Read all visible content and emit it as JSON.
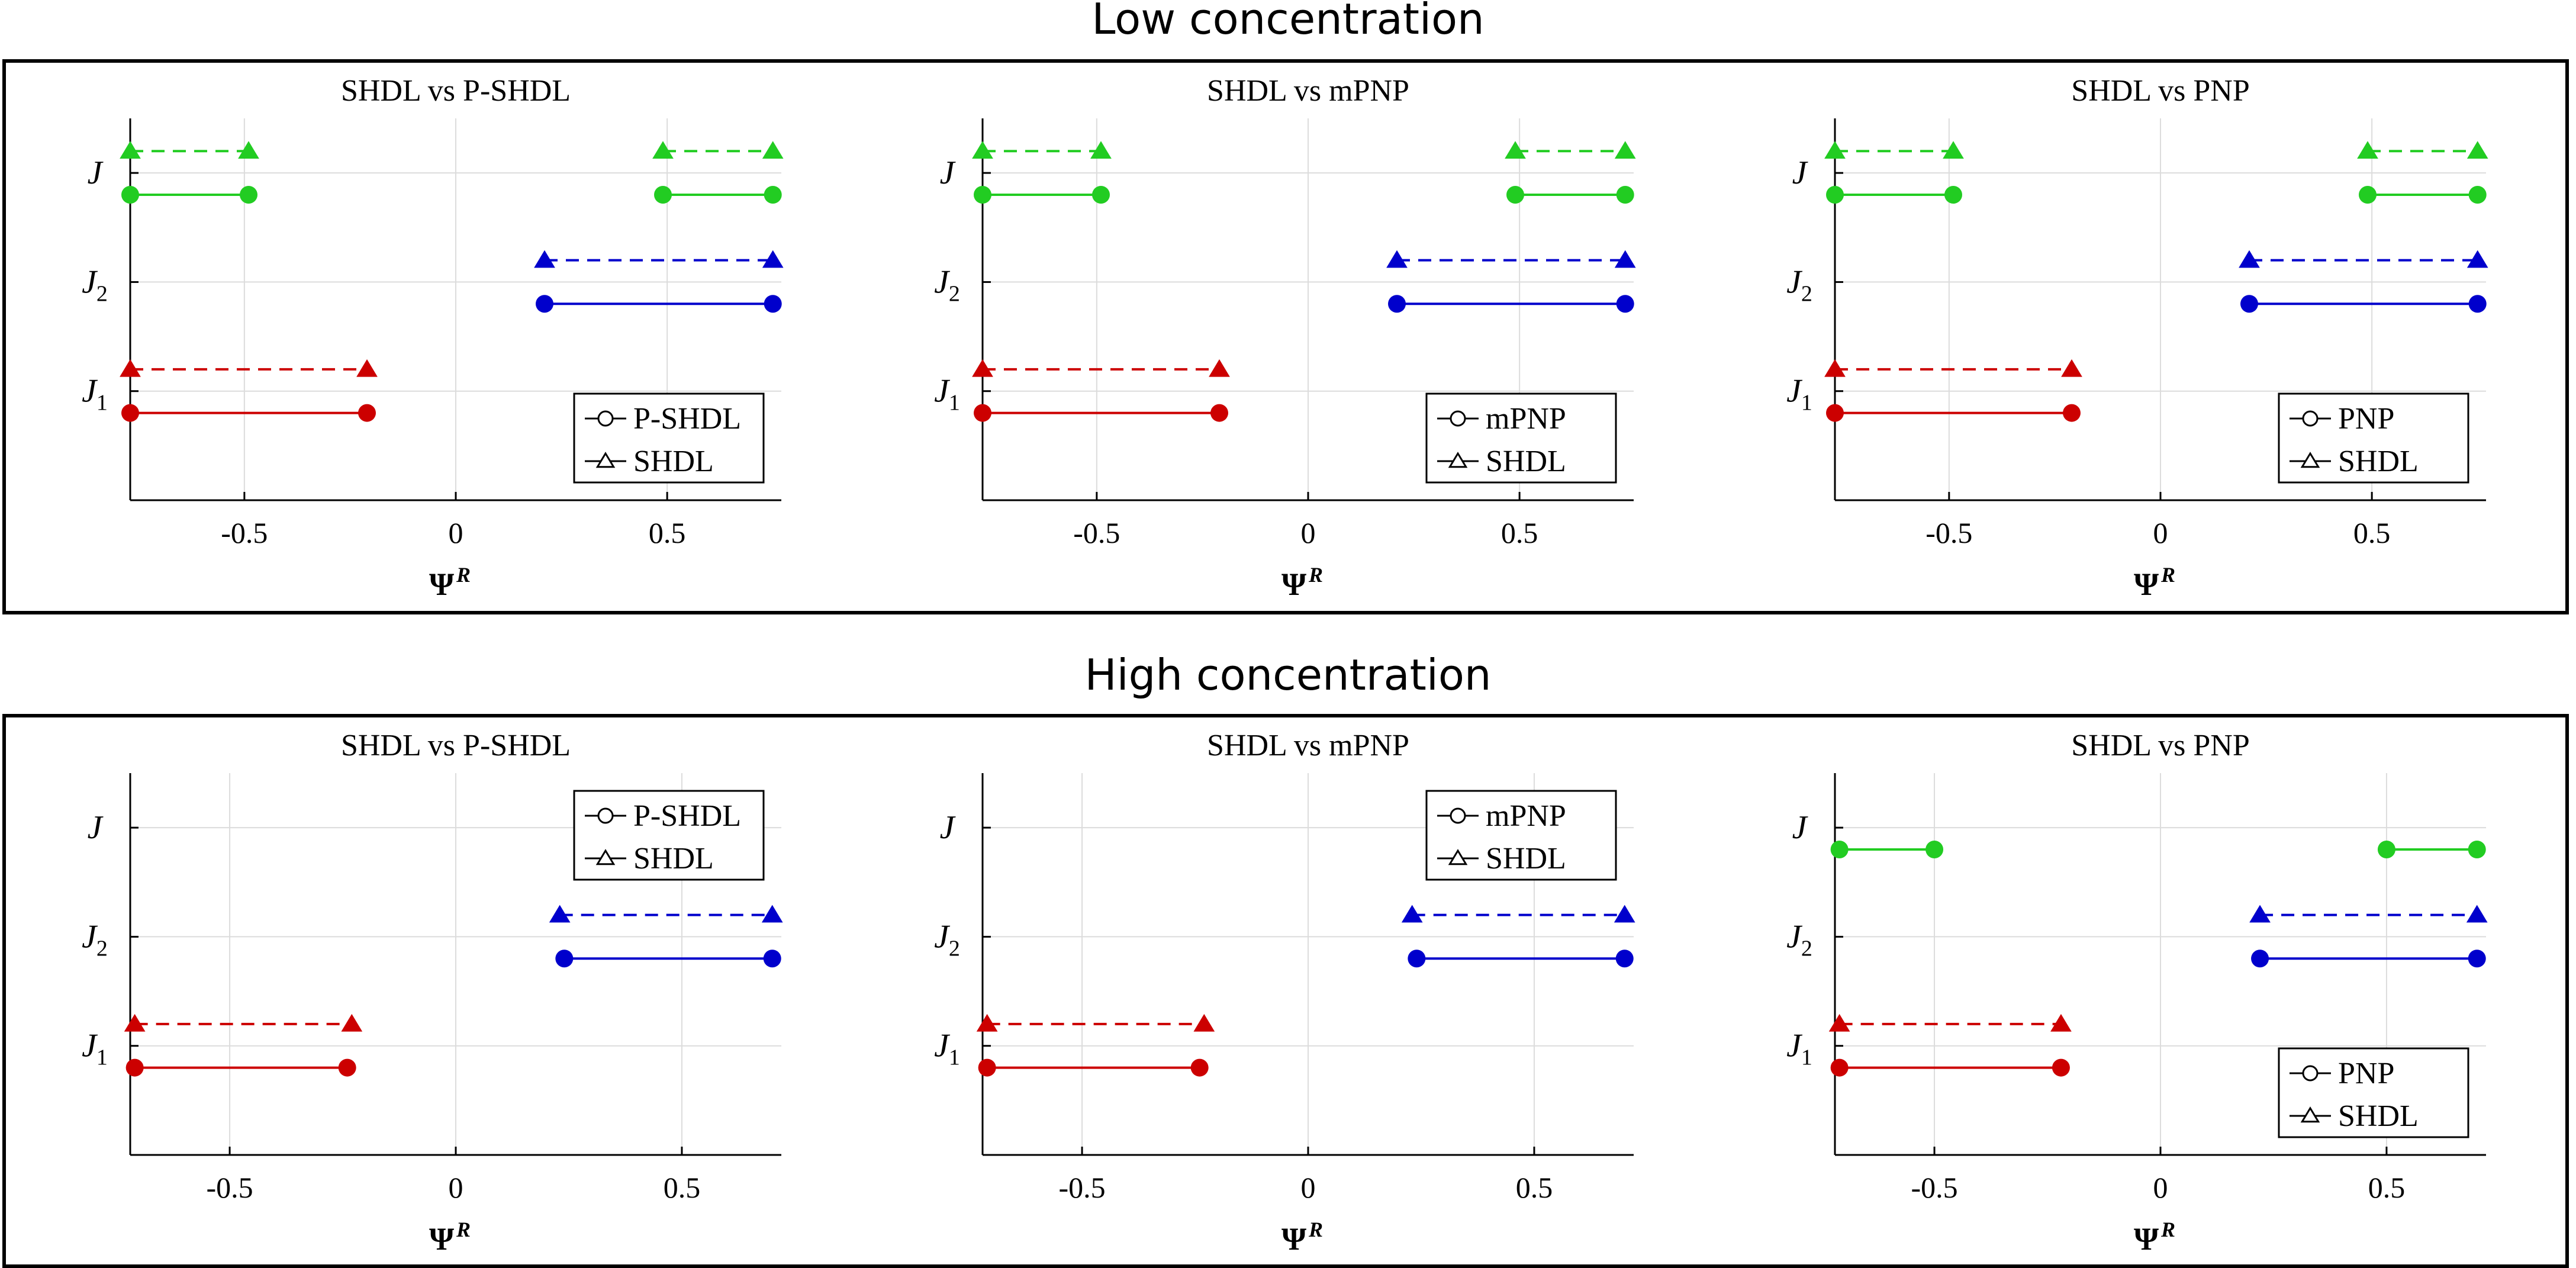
{
  "sections": [
    {
      "title": "Low concentration"
    },
    {
      "title": "High concentration"
    }
  ],
  "colors": {
    "J": "#22cc22",
    "J2": "#0000cc",
    "J1": "#cc0000",
    "axis": "#000000",
    "grid": "#dcdcdc"
  },
  "chart_data": [
    {
      "type": "line",
      "section": 0,
      "title": "SHDL vs P-SHDL",
      "xlabel": "Ψ",
      "xlabel_sup": "R",
      "xlim": [
        -0.77,
        0.77
      ],
      "ylim": [
        0,
        3.5
      ],
      "xticks": [
        -0.5,
        0,
        0.5
      ],
      "xtick_labels": [
        "-0.5",
        "0",
        "0.5"
      ],
      "yticks": [
        {
          "value": 1,
          "label": "J",
          "sub": "1"
        },
        {
          "value": 2,
          "label": "J",
          "sub": "2"
        },
        {
          "value": 3,
          "label": "J",
          "sub": ""
        }
      ],
      "legend": {
        "position": "bottom-right",
        "entries": [
          "P-SHDL",
          "SHDL"
        ]
      },
      "series": [
        {
          "name": "P-SHDL",
          "flux": "J",
          "marker": "circle",
          "dash": false,
          "y": 2.8,
          "segments": [
            [
              -0.77,
              -0.49
            ],
            [
              0.49,
              0.75
            ]
          ]
        },
        {
          "name": "SHDL",
          "flux": "J",
          "marker": "triangle",
          "dash": true,
          "y": 3.2,
          "segments": [
            [
              -0.77,
              -0.49
            ],
            [
              0.49,
              0.75
            ]
          ]
        },
        {
          "name": "P-SHDL",
          "flux": "J2",
          "marker": "circle",
          "dash": false,
          "y": 1.8,
          "segments": [
            [
              0.21,
              0.75
            ]
          ]
        },
        {
          "name": "SHDL",
          "flux": "J2",
          "marker": "triangle",
          "dash": true,
          "y": 2.2,
          "segments": [
            [
              0.21,
              0.75
            ]
          ]
        },
        {
          "name": "P-SHDL",
          "flux": "J1",
          "marker": "circle",
          "dash": false,
          "y": 0.8,
          "segments": [
            [
              -0.77,
              -0.21
            ]
          ]
        },
        {
          "name": "SHDL",
          "flux": "J1",
          "marker": "triangle",
          "dash": true,
          "y": 1.2,
          "segments": [
            [
              -0.77,
              -0.21
            ]
          ]
        }
      ]
    },
    {
      "type": "line",
      "section": 0,
      "title": "SHDL vs mPNP",
      "xlabel": "Ψ",
      "xlabel_sup": "R",
      "xlim": [
        -0.77,
        0.77
      ],
      "ylim": [
        0,
        3.5
      ],
      "xticks": [
        -0.5,
        0,
        0.5
      ],
      "xtick_labels": [
        "-0.5",
        "0",
        "0.5"
      ],
      "yticks": [
        {
          "value": 1,
          "label": "J",
          "sub": "1"
        },
        {
          "value": 2,
          "label": "J",
          "sub": "2"
        },
        {
          "value": 3,
          "label": "J",
          "sub": ""
        }
      ],
      "legend": {
        "position": "bottom-right",
        "entries": [
          "mPNP",
          "SHDL"
        ]
      },
      "series": [
        {
          "name": "mPNP",
          "flux": "J",
          "marker": "circle",
          "dash": false,
          "y": 2.8,
          "segments": [
            [
              -0.77,
              -0.49
            ],
            [
              0.49,
              0.75
            ]
          ]
        },
        {
          "name": "SHDL",
          "flux": "J",
          "marker": "triangle",
          "dash": true,
          "y": 3.2,
          "segments": [
            [
              -0.77,
              -0.49
            ],
            [
              0.49,
              0.75
            ]
          ]
        },
        {
          "name": "mPNP",
          "flux": "J2",
          "marker": "circle",
          "dash": false,
          "y": 1.8,
          "segments": [
            [
              0.21,
              0.75
            ]
          ]
        },
        {
          "name": "SHDL",
          "flux": "J2",
          "marker": "triangle",
          "dash": true,
          "y": 2.2,
          "segments": [
            [
              0.21,
              0.75
            ]
          ]
        },
        {
          "name": "mPNP",
          "flux": "J1",
          "marker": "circle",
          "dash": false,
          "y": 0.8,
          "segments": [
            [
              -0.77,
              -0.21
            ]
          ]
        },
        {
          "name": "SHDL",
          "flux": "J1",
          "marker": "triangle",
          "dash": true,
          "y": 1.2,
          "segments": [
            [
              -0.77,
              -0.21
            ]
          ]
        }
      ]
    },
    {
      "type": "line",
      "section": 0,
      "title": "SHDL vs PNP",
      "xlabel": "Ψ",
      "xlabel_sup": "R",
      "xlim": [
        -0.77,
        0.77
      ],
      "ylim": [
        0,
        3.5
      ],
      "xticks": [
        -0.5,
        0,
        0.5
      ],
      "xtick_labels": [
        "-0.5",
        "0",
        "0.5"
      ],
      "yticks": [
        {
          "value": 1,
          "label": "J",
          "sub": "1"
        },
        {
          "value": 2,
          "label": "J",
          "sub": "2"
        },
        {
          "value": 3,
          "label": "J",
          "sub": ""
        }
      ],
      "legend": {
        "position": "bottom-right",
        "entries": [
          "PNP",
          "SHDL"
        ]
      },
      "series": [
        {
          "name": "PNP",
          "flux": "J",
          "marker": "circle",
          "dash": false,
          "y": 2.8,
          "segments": [
            [
              -0.77,
              -0.49
            ],
            [
              0.49,
              0.75
            ]
          ]
        },
        {
          "name": "SHDL",
          "flux": "J",
          "marker": "triangle",
          "dash": true,
          "y": 3.2,
          "segments": [
            [
              -0.77,
              -0.49
            ],
            [
              0.49,
              0.75
            ]
          ]
        },
        {
          "name": "PNP",
          "flux": "J2",
          "marker": "circle",
          "dash": false,
          "y": 1.8,
          "segments": [
            [
              0.21,
              0.75
            ]
          ]
        },
        {
          "name": "SHDL",
          "flux": "J2",
          "marker": "triangle",
          "dash": true,
          "y": 2.2,
          "segments": [
            [
              0.21,
              0.75
            ]
          ]
        },
        {
          "name": "PNP",
          "flux": "J1",
          "marker": "circle",
          "dash": false,
          "y": 0.8,
          "segments": [
            [
              -0.77,
              -0.21
            ]
          ]
        },
        {
          "name": "SHDL",
          "flux": "J1",
          "marker": "triangle",
          "dash": true,
          "y": 1.2,
          "segments": [
            [
              -0.77,
              -0.21
            ]
          ]
        }
      ]
    },
    {
      "type": "line",
      "section": 1,
      "title": "SHDL vs P-SHDL",
      "xlabel": "Ψ",
      "xlabel_sup": "R",
      "xlim": [
        -0.72,
        0.72
      ],
      "ylim": [
        0,
        3.5
      ],
      "xticks": [
        -0.5,
        0,
        0.5
      ],
      "xtick_labels": [
        "-0.5",
        "0",
        "0.5"
      ],
      "yticks": [
        {
          "value": 1,
          "label": "J",
          "sub": "1"
        },
        {
          "value": 2,
          "label": "J",
          "sub": "2"
        },
        {
          "value": 3,
          "label": "J",
          "sub": ""
        }
      ],
      "legend": {
        "position": "top-right",
        "entries": [
          "P-SHDL",
          "SHDL"
        ]
      },
      "series": [
        {
          "name": "P-SHDL",
          "flux": "J2",
          "marker": "circle",
          "dash": false,
          "y": 1.8,
          "segments": [
            [
              0.24,
              0.7
            ]
          ]
        },
        {
          "name": "SHDL",
          "flux": "J2",
          "marker": "triangle",
          "dash": true,
          "y": 2.2,
          "segments": [
            [
              0.23,
              0.7
            ]
          ]
        },
        {
          "name": "P-SHDL",
          "flux": "J1",
          "marker": "circle",
          "dash": false,
          "y": 0.8,
          "segments": [
            [
              -0.71,
              -0.24
            ]
          ]
        },
        {
          "name": "SHDL",
          "flux": "J1",
          "marker": "triangle",
          "dash": true,
          "y": 1.2,
          "segments": [
            [
              -0.71,
              -0.23
            ]
          ]
        }
      ]
    },
    {
      "type": "line",
      "section": 1,
      "title": "SHDL vs mPNP",
      "xlabel": "Ψ",
      "xlabel_sup": "R",
      "xlim": [
        -0.72,
        0.72
      ],
      "ylim": [
        0,
        3.5
      ],
      "xticks": [
        -0.5,
        0,
        0.5
      ],
      "xtick_labels": [
        "-0.5",
        "0",
        "0.5"
      ],
      "yticks": [
        {
          "value": 1,
          "label": "J",
          "sub": "1"
        },
        {
          "value": 2,
          "label": "J",
          "sub": "2"
        },
        {
          "value": 3,
          "label": "J",
          "sub": ""
        }
      ],
      "legend": {
        "position": "top-right",
        "entries": [
          "mPNP",
          "SHDL"
        ]
      },
      "series": [
        {
          "name": "mPNP",
          "flux": "J2",
          "marker": "circle",
          "dash": false,
          "y": 1.8,
          "segments": [
            [
              0.24,
              0.7
            ]
          ]
        },
        {
          "name": "SHDL",
          "flux": "J2",
          "marker": "triangle",
          "dash": true,
          "y": 2.2,
          "segments": [
            [
              0.23,
              0.7
            ]
          ]
        },
        {
          "name": "mPNP",
          "flux": "J1",
          "marker": "circle",
          "dash": false,
          "y": 0.8,
          "segments": [
            [
              -0.71,
              -0.24
            ]
          ]
        },
        {
          "name": "SHDL",
          "flux": "J1",
          "marker": "triangle",
          "dash": true,
          "y": 1.2,
          "segments": [
            [
              -0.71,
              -0.23
            ]
          ]
        }
      ]
    },
    {
      "type": "line",
      "section": 1,
      "title": "SHDL vs PNP",
      "xlabel": "Ψ",
      "xlabel_sup": "R",
      "xlim": [
        -0.72,
        0.72
      ],
      "ylim": [
        0,
        3.5
      ],
      "xticks": [
        -0.5,
        0,
        0.5
      ],
      "xtick_labels": [
        "-0.5",
        "0",
        "0.5"
      ],
      "yticks": [
        {
          "value": 1,
          "label": "J",
          "sub": "1"
        },
        {
          "value": 2,
          "label": "J",
          "sub": "2"
        },
        {
          "value": 3,
          "label": "J",
          "sub": ""
        }
      ],
      "legend": {
        "position": "bottom-right",
        "entries": [
          "PNP",
          "SHDL"
        ]
      },
      "series": [
        {
          "name": "PNP",
          "flux": "J",
          "marker": "circle",
          "dash": false,
          "y": 2.8,
          "segments": [
            [
              -0.71,
              -0.5
            ],
            [
              0.5,
              0.7
            ]
          ]
        },
        {
          "name": "PNP",
          "flux": "J2",
          "marker": "circle",
          "dash": false,
          "y": 1.8,
          "segments": [
            [
              0.22,
              0.7
            ]
          ]
        },
        {
          "name": "SHDL",
          "flux": "J2",
          "marker": "triangle",
          "dash": true,
          "y": 2.2,
          "segments": [
            [
              0.22,
              0.7
            ]
          ]
        },
        {
          "name": "PNP",
          "flux": "J1",
          "marker": "circle",
          "dash": false,
          "y": 0.8,
          "segments": [
            [
              -0.71,
              -0.22
            ]
          ]
        },
        {
          "name": "SHDL",
          "flux": "J1",
          "marker": "triangle",
          "dash": true,
          "y": 1.2,
          "segments": [
            [
              -0.71,
              -0.22
            ]
          ]
        }
      ]
    }
  ]
}
